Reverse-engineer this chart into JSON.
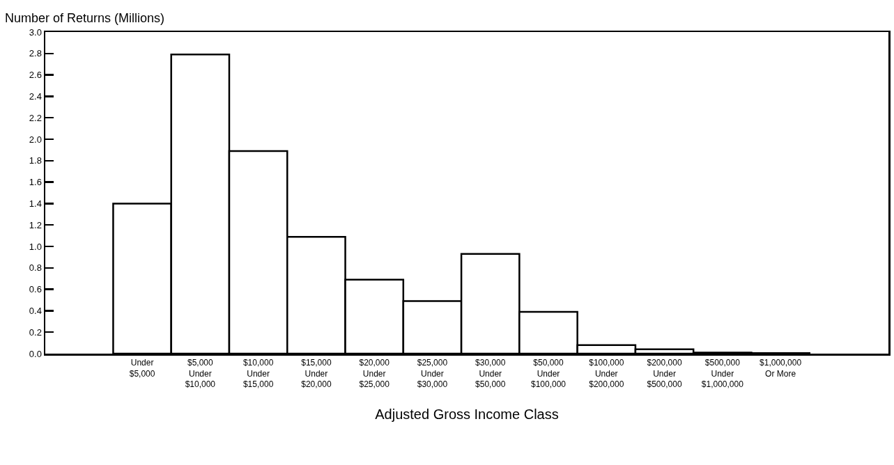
{
  "chart_data": {
    "type": "bar",
    "ylabel": "Number of Returns (Millions)",
    "xlabel": "Adjusted Gross Income Class",
    "categories": [
      "Under\n$5,000",
      "$5,000\nUnder\n$10,000",
      "$10,000\nUnder\n$15,000",
      "$15,000\nUnder\n$20,000",
      "$20,000\nUnder\n$25,000",
      "$25,000\nUnder\n$30,000",
      "$30,000\nUnder\n$50,000",
      "$50,000\nUnder\n$100,000",
      "$100,000\nUnder\n$200,000",
      "$200,000\nUnder\n$500,000",
      "$500,000\nUnder\n$1,000,000",
      "$1,000,000\nOr More"
    ],
    "values": [
      1.4,
      2.79,
      1.89,
      1.09,
      0.69,
      0.49,
      0.93,
      0.39,
      0.08,
      0.04,
      0.01,
      0.005
    ],
    "color": "#ffffff",
    "ylim": [
      0,
      3
    ],
    "yticks": [
      {
        "value": 0,
        "label": "0.0"
      },
      0.2,
      0.4,
      0.6,
      0.8,
      {
        "value": 1,
        "label": "1.0"
      },
      1.2,
      1.4,
      1.6,
      1.8,
      {
        "value": 2,
        "label": "2.0"
      },
      2.2,
      2.4,
      2.6,
      2.8,
      {
        "value": 3,
        "label": "3.0"
      }
    ],
    "grid": false
  }
}
